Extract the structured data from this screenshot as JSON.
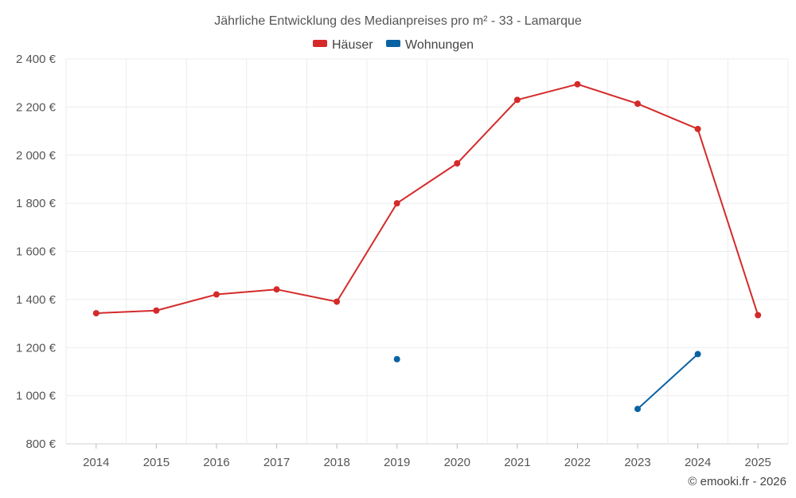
{
  "chart_data": {
    "type": "line",
    "title": "Jährliche Entwicklung des Medianpreises pro m² - 33 - Lamarque",
    "categories": [
      "2014",
      "2015",
      "2016",
      "2017",
      "2018",
      "2019",
      "2020",
      "2021",
      "2022",
      "2023",
      "2024",
      "2025"
    ],
    "ylim": [
      800,
      2400
    ],
    "yticks": [
      800,
      1000,
      1200,
      1400,
      1600,
      1800,
      2000,
      2200,
      2400
    ],
    "ytick_labels": [
      "800 €",
      "1 000 €",
      "1 200 €",
      "1 400 €",
      "1 600 €",
      "1 800 €",
      "2 000 €",
      "2 200 €",
      "2 400 €"
    ],
    "grid": true,
    "legend_position": "top-center",
    "series": [
      {
        "name": "Häuser",
        "color": "#d42a2a",
        "values": [
          1343,
          1354,
          1421,
          1442,
          1391,
          1800,
          1966,
          2230,
          2295,
          2214,
          2109,
          1335
        ]
      },
      {
        "name": "Wohnungen",
        "color": "#0a62a3",
        "values": [
          null,
          null,
          null,
          null,
          null,
          1152,
          null,
          null,
          null,
          945,
          1173,
          null
        ]
      }
    ]
  },
  "credit": "© emooki.fr - 2026"
}
